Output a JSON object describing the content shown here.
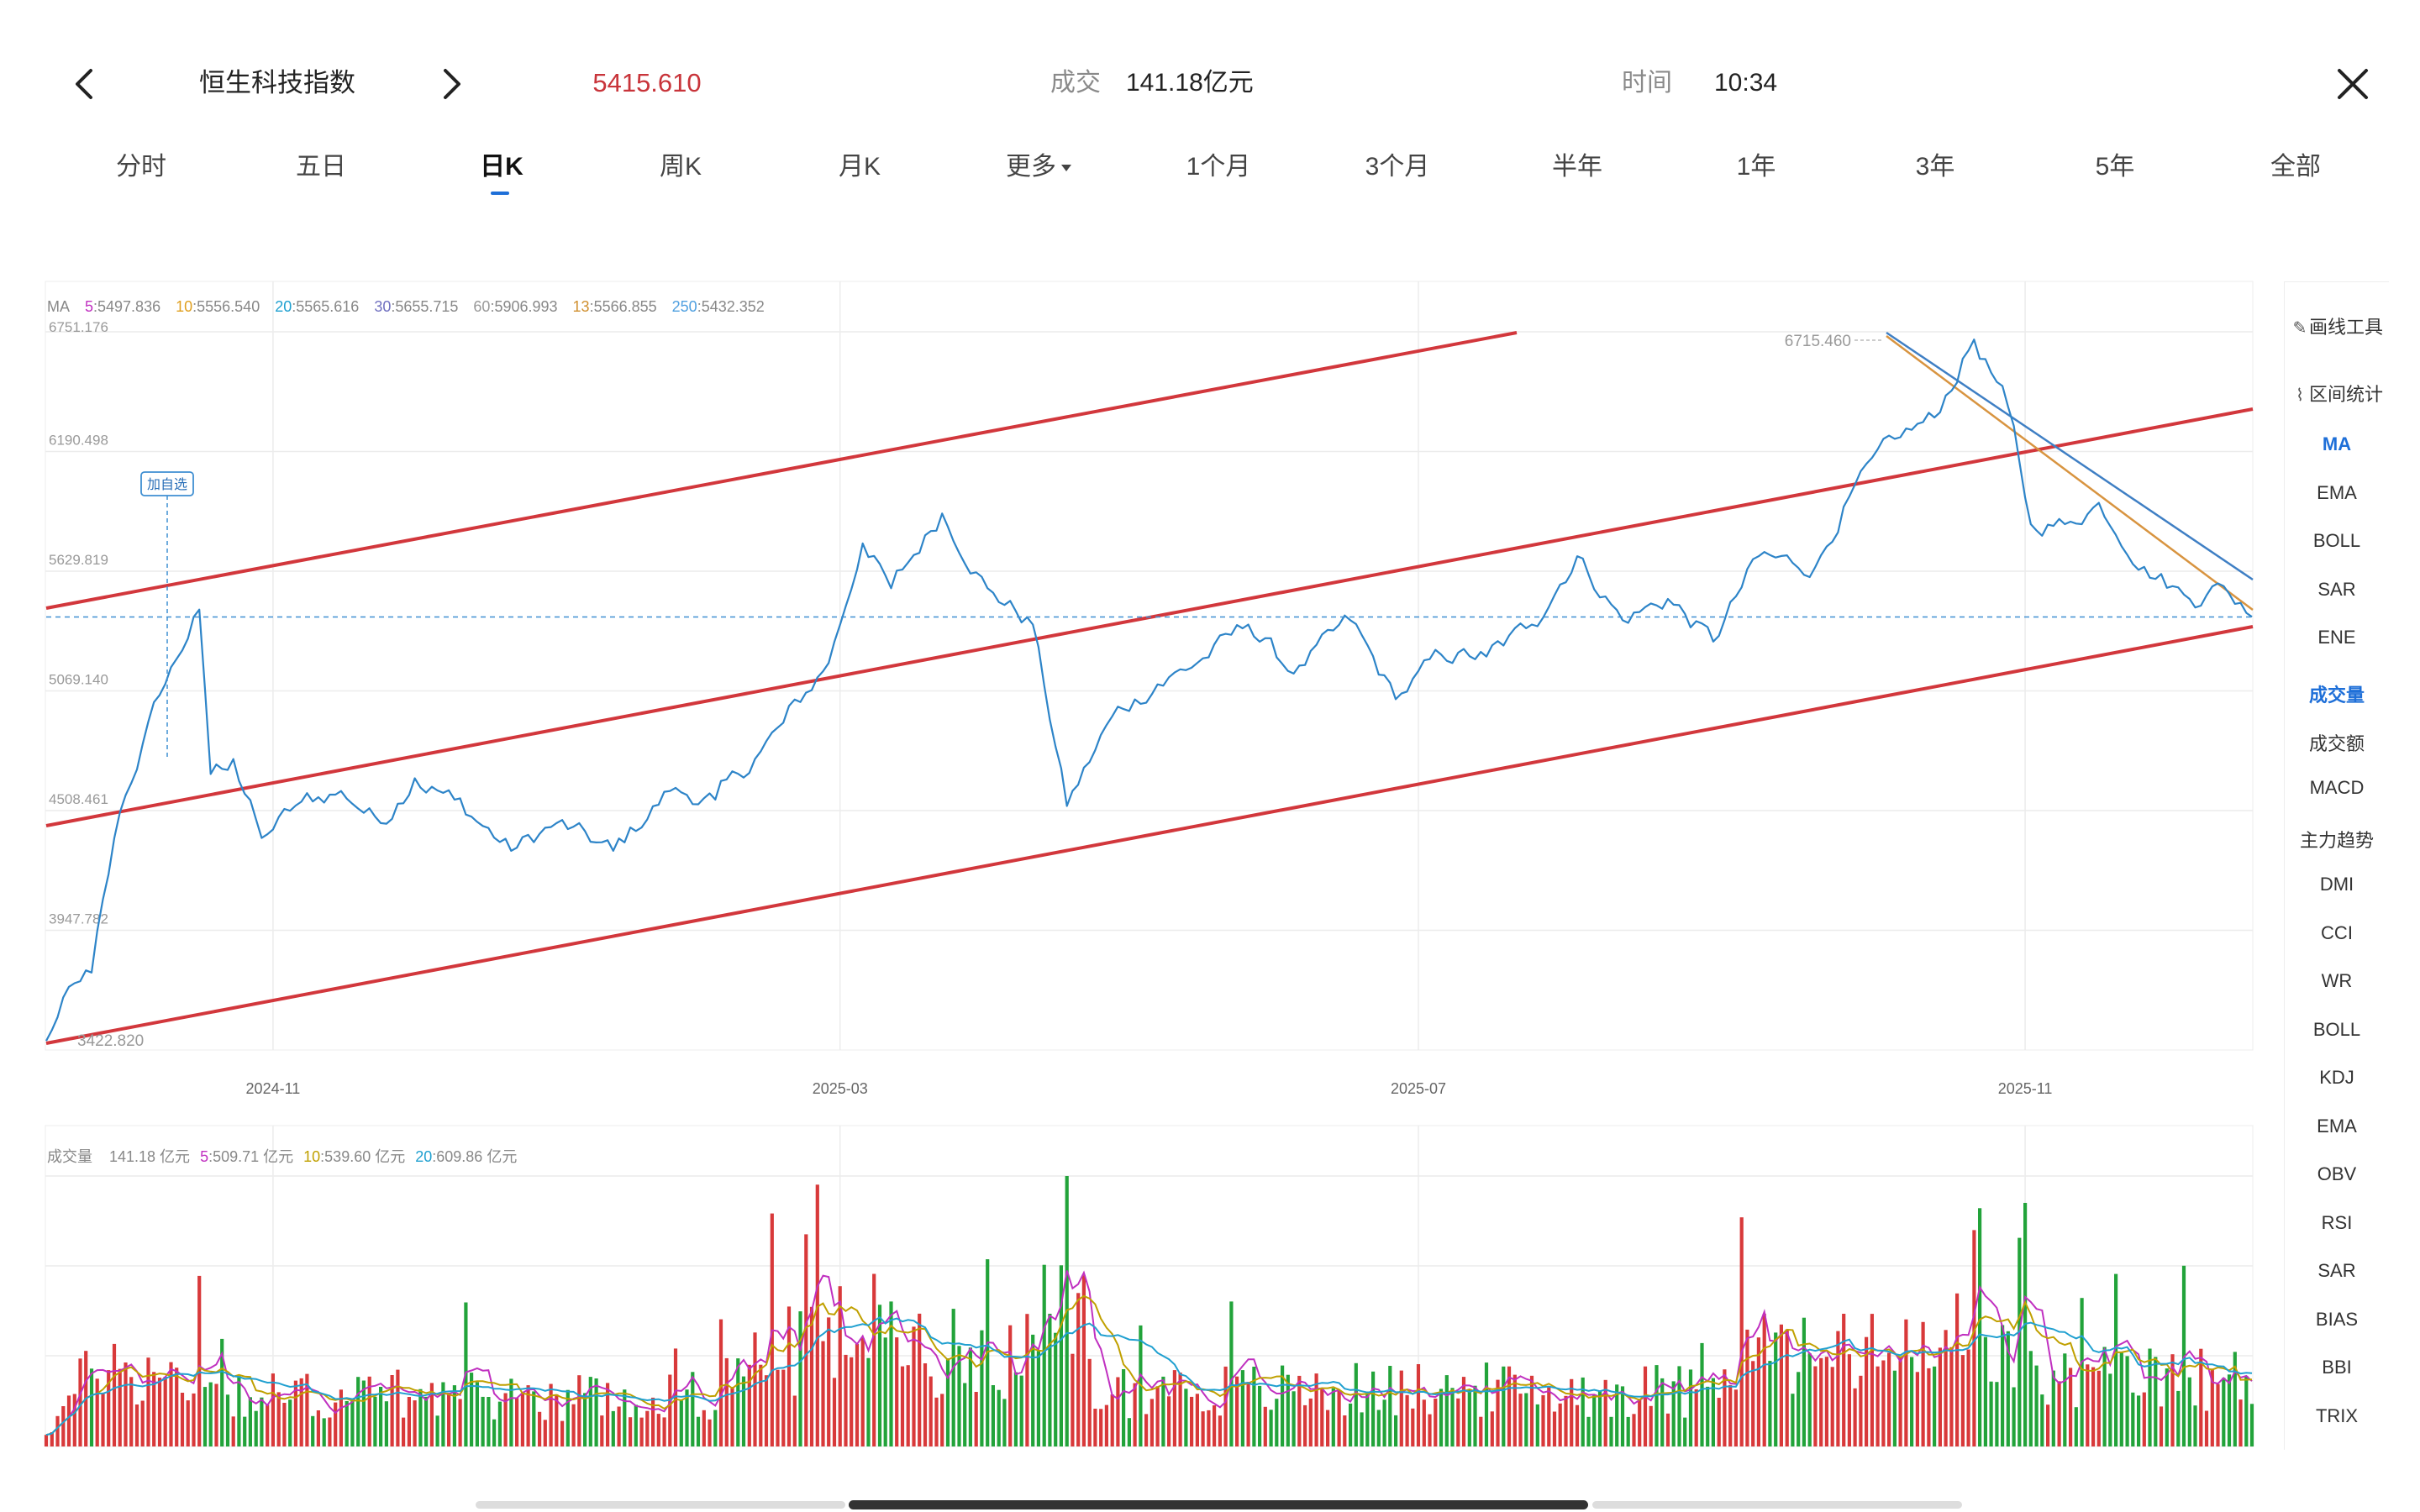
{
  "header": {
    "title": "恒生科技指数",
    "price": "5415.610",
    "volume_label": "成交",
    "volume_value": "141.18亿元",
    "time_label": "时间",
    "time_value": "10:34"
  },
  "tabs": [
    {
      "label": "分时"
    },
    {
      "label": "五日"
    },
    {
      "label": "日K",
      "active": true
    },
    {
      "label": "周K"
    },
    {
      "label": "月K"
    },
    {
      "label": "更多",
      "caret": true
    },
    {
      "label": "1个月"
    },
    {
      "label": "3个月"
    },
    {
      "label": "半年"
    },
    {
      "label": "1年"
    },
    {
      "label": "3年"
    },
    {
      "label": "5年"
    },
    {
      "label": "全部"
    }
  ],
  "ma_legend": {
    "label": "MA",
    "items": [
      {
        "key": "5",
        "value": ":5497.836",
        "color": "#c030c0"
      },
      {
        "key": "10",
        "value": ":5556.540",
        "color": "#e0a020"
      },
      {
        "key": "20",
        "value": ":5565.616",
        "color": "#20a0d0"
      },
      {
        "key": "30",
        "value": ":5655.715",
        "color": "#7070c0"
      },
      {
        "key": "60",
        "value": ":5906.993",
        "color": "#999999"
      },
      {
        "key": "13",
        "value": ":5566.855",
        "color": "#d09030"
      },
      {
        "key": "250",
        "value": ":5432.352",
        "color": "#50a0e0"
      }
    ]
  },
  "vol_legend": {
    "label": "成交量",
    "total": "141.18 亿元",
    "items": [
      {
        "key": "5",
        "value": ":509.71 亿元",
        "color": "#c030c0"
      },
      {
        "key": "10",
        "value": ":539.60 亿元",
        "color": "#c0a000"
      },
      {
        "key": "20",
        "value": ":609.86 亿元",
        "color": "#20a0d0"
      }
    ]
  },
  "add_watch_label": "加自选",
  "max_label": "6715.460",
  "min_label": "3422.820",
  "chart_data": {
    "type": "line",
    "series_color": "#2d84c8",
    "y_ticks": [
      "6751.176",
      "6190.498",
      "5629.819",
      "5069.140",
      "4508.461",
      "3947.782"
    ],
    "y_tick_values": [
      6751.176,
      6190.498,
      5629.819,
      5069.14,
      4508.461,
      3947.782
    ],
    "ylim": [
      3387.1,
      6751.176
    ],
    "x_ticks": [
      {
        "label": "2024-11",
        "index": 40
      },
      {
        "label": "2025-03",
        "index": 140
      },
      {
        "label": "2025-07",
        "index": 242
      },
      {
        "label": "2025-11",
        "index": 349
      }
    ],
    "n_points": 390,
    "current_price": 5415.61,
    "anchors": [
      [
        0,
        3430
      ],
      [
        5,
        3700
      ],
      [
        8,
        3750
      ],
      [
        13,
        4500
      ],
      [
        20,
        5050
      ],
      [
        27,
        5450
      ],
      [
        29,
        4680
      ],
      [
        33,
        4750
      ],
      [
        38,
        4380
      ],
      [
        45,
        4550
      ],
      [
        52,
        4600
      ],
      [
        59,
        4450
      ],
      [
        65,
        4660
      ],
      [
        72,
        4560
      ],
      [
        82,
        4320
      ],
      [
        90,
        4450
      ],
      [
        100,
        4320
      ],
      [
        110,
        4600
      ],
      [
        118,
        4560
      ],
      [
        125,
        4750
      ],
      [
        130,
        4920
      ],
      [
        138,
        5200
      ],
      [
        144,
        5760
      ],
      [
        149,
        5550
      ],
      [
        158,
        5900
      ],
      [
        166,
        5550
      ],
      [
        174,
        5380
      ],
      [
        180,
        4530
      ],
      [
        188,
        4950
      ],
      [
        196,
        5100
      ],
      [
        203,
        5200
      ],
      [
        212,
        5380
      ],
      [
        220,
        5150
      ],
      [
        230,
        5400
      ],
      [
        238,
        5030
      ],
      [
        246,
        5240
      ],
      [
        254,
        5230
      ],
      [
        262,
        5380
      ],
      [
        270,
        5700
      ],
      [
        278,
        5400
      ],
      [
        286,
        5500
      ],
      [
        294,
        5300
      ],
      [
        302,
        5700
      ],
      [
        312,
        5650
      ],
      [
        318,
        5980
      ],
      [
        326,
        6250
      ],
      [
        333,
        6350
      ],
      [
        340,
        6715
      ],
      [
        346,
        6400
      ],
      [
        350,
        5850
      ],
      [
        356,
        5850
      ],
      [
        362,
        5950
      ],
      [
        370,
        5650
      ],
      [
        378,
        5500
      ],
      [
        384,
        5560
      ],
      [
        389,
        5416
      ]
    ],
    "volume": {
      "unit": "亿元",
      "ma5_last": 509.71,
      "ma10_last": 539.6,
      "ma20_last": 609.86,
      "max": 1300
    }
  },
  "side_panel": {
    "top_items": [
      {
        "label": "画线工具",
        "icon": "pen-icon"
      },
      {
        "label": "区间统计",
        "icon": "range-icon"
      }
    ],
    "main_indicators": [
      "MA",
      "EMA",
      "BOLL",
      "SAR",
      "ENE"
    ],
    "sub_indicators": [
      "成交量",
      "成交额",
      "MACD",
      "主力趋势",
      "DMI",
      "CCI",
      "WR",
      "BOLL",
      "KDJ",
      "EMA",
      "OBV",
      "RSI",
      "SAR",
      "BIAS",
      "BBI",
      "TRIX"
    ],
    "highlight": [
      "MA",
      "成交量"
    ],
    "highlight_color": "#1e6fd8"
  },
  "colors": {
    "up": "#d8393a",
    "down": "#22a33a",
    "channel": "#d2373c",
    "trend_orange": "#d89440",
    "trend_blue": "#3f7fc4",
    "price_text": "#c8343a"
  }
}
